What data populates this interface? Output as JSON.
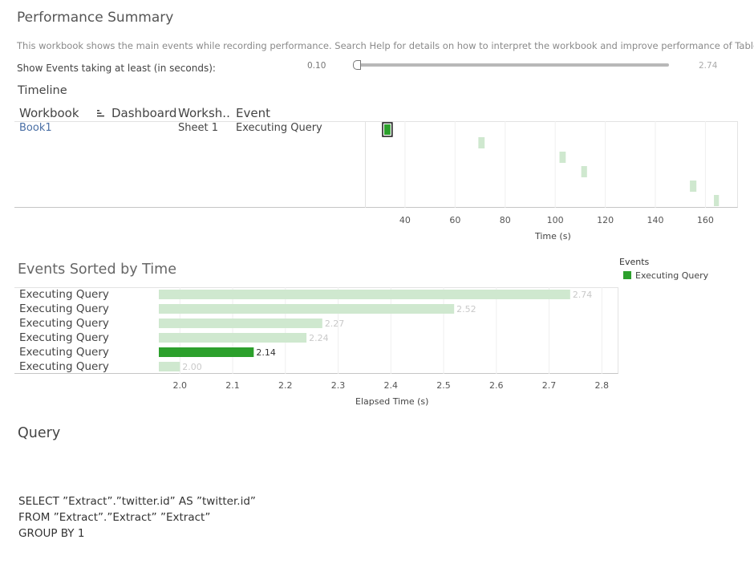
{
  "header": {
    "title": "Performance Summary",
    "description": "This workbook shows the main events while recording performance. Search Help for details on how to interpret the workbook and improve performance of Tableau."
  },
  "filter": {
    "label": "Show Events taking at least (in seconds):",
    "min_label": "0.10",
    "max_label": "2.74",
    "value": 0.1
  },
  "timeline": {
    "title": "Timeline",
    "columns": [
      "Workbook",
      "Dashboard",
      "Worksh..",
      "Event"
    ],
    "row": {
      "workbook": "Book1",
      "worksheet": "Sheet 1",
      "event": "Executing Query"
    }
  },
  "legend": {
    "title": "Events",
    "items": [
      {
        "label": "Executing Query",
        "color": "#2ca02c"
      }
    ]
  },
  "events_section": {
    "title": "Events Sorted by Time",
    "row_labels": [
      "Executing Query",
      "Executing Query",
      "Executing Query",
      "Executing Query",
      "Executing Query",
      "Executing Query"
    ]
  },
  "query": {
    "title": "Query",
    "lines": [
      "SELECT ”Extract”.”twitter.id” AS ”twitter.id”",
      "FROM ”Extract”.”Extract” ”Extract”",
      "GROUP BY 1"
    ]
  },
  "colors": {
    "highlight": "#2ca02c",
    "faded": "#cfe8cf",
    "faded_label": "#c9c9c9"
  },
  "chart_data": [
    {
      "type": "scatter",
      "name": "timeline",
      "xlabel": "Time (s)",
      "xticks": [
        40,
        60,
        80,
        100,
        120,
        140,
        160
      ],
      "xlim": [
        24,
        173
      ],
      "events": [
        {
          "start": 31.7,
          "end": 34.2,
          "row": 0,
          "highlighted": true
        },
        {
          "start": 69.3,
          "end": 71.8,
          "row": 1,
          "highlighted": false
        },
        {
          "start": 101.7,
          "end": 104.2,
          "row": 2,
          "highlighted": false
        },
        {
          "start": 110.4,
          "end": 112.7,
          "row": 3,
          "highlighted": false
        },
        {
          "start": 153.8,
          "end": 156.4,
          "row": 4,
          "highlighted": false
        },
        {
          "start": 163.4,
          "end": 165.4,
          "row": 5,
          "highlighted": false
        }
      ]
    },
    {
      "type": "bar",
      "name": "events-sorted-by-time",
      "categories": [
        "Executing Query",
        "Executing Query",
        "Executing Query",
        "Executing Query",
        "Executing Query",
        "Executing Query"
      ],
      "values": [
        2.74,
        2.52,
        2.27,
        2.24,
        2.14,
        2.0
      ],
      "value_labels": [
        "2.74",
        "2.52",
        "2.27",
        "2.24",
        "2.14",
        "2.00"
      ],
      "highlighted": [
        false,
        false,
        false,
        false,
        true,
        false
      ],
      "xlabel": "Elapsed Time (s)",
      "xticks": [
        "2.0",
        "2.1",
        "2.2",
        "2.3",
        "2.4",
        "2.5",
        "2.6",
        "2.7",
        "2.8"
      ],
      "xlim": [
        1.96,
        2.83
      ]
    }
  ]
}
